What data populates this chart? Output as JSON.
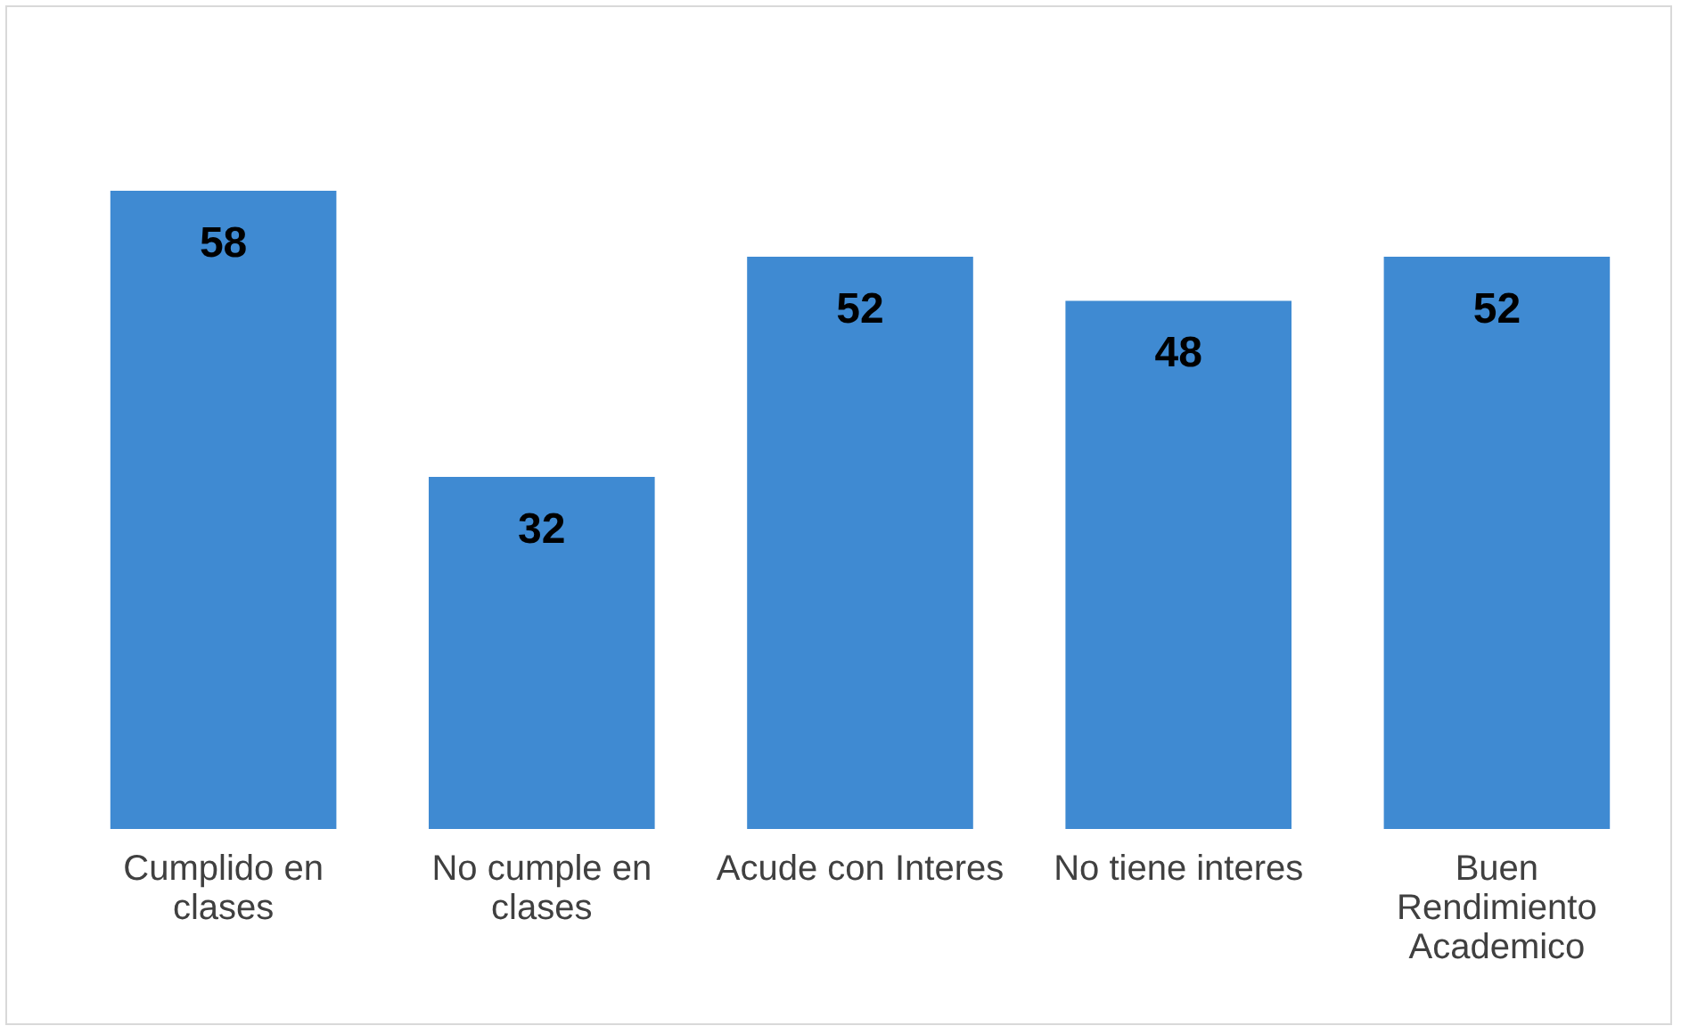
{
  "chart_data": {
    "type": "bar",
    "categories": [
      "Cumplido en clases",
      "No cumple en clases",
      "Acude con Interes",
      "No tiene interes",
      "Buen Rendimiento Academico"
    ],
    "values": [
      58,
      32,
      52,
      48,
      52
    ],
    "color": "#3f8ad2",
    "data_labels": true
  }
}
